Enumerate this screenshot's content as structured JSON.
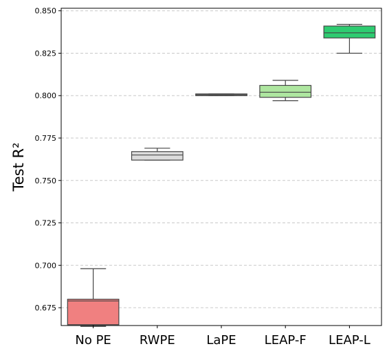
{
  "chart_data": {
    "type": "box",
    "ylabel": "Test R²",
    "xlabel": "",
    "ylim": [
      0.6645,
      0.8515
    ],
    "yticks": [
      0.675,
      0.7,
      0.725,
      0.75,
      0.775,
      0.8,
      0.825,
      0.85
    ],
    "ytick_labels": [
      "0.675",
      "0.700",
      "0.725",
      "0.750",
      "0.775",
      "0.800",
      "0.825",
      "0.850"
    ],
    "grid": "y-dashed",
    "categories": [
      "No PE",
      "RWPE",
      "LaPE",
      "LEAP-F",
      "LEAP-L"
    ],
    "boxes": [
      {
        "category": "No PE",
        "min": 0.664,
        "q1": 0.665,
        "median": 0.679,
        "q3": 0.68,
        "max": 0.698,
        "color": "#f08080"
      },
      {
        "category": "RWPE",
        "min": 0.762,
        "q1": 0.762,
        "median": 0.765,
        "q3": 0.767,
        "max": 0.769,
        "color": "#dcdcdc"
      },
      {
        "category": "LaPE",
        "min": 0.8,
        "q1": 0.8,
        "median": 0.8005,
        "q3": 0.801,
        "max": 0.801,
        "color": "#dcdcdc"
      },
      {
        "category": "LEAP-F",
        "min": 0.797,
        "q1": 0.799,
        "median": 0.802,
        "q3": 0.806,
        "max": 0.809,
        "color": "#aee6a0"
      },
      {
        "category": "LEAP-L",
        "min": 0.825,
        "q1": 0.834,
        "median": 0.837,
        "q3": 0.841,
        "max": 0.842,
        "color": "#2ecc71"
      }
    ]
  }
}
